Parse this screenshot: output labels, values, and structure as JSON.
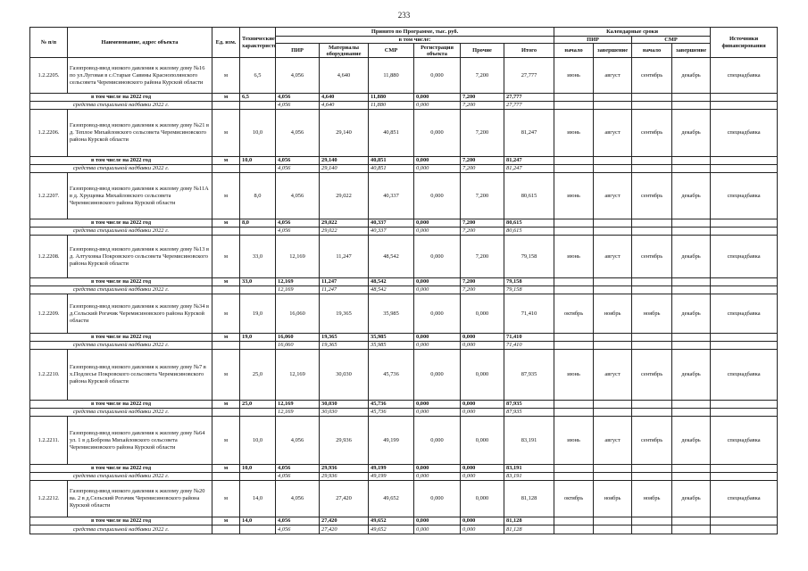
{
  "page_number": "233",
  "header": {
    "num": "№ п/п",
    "name": "Наименование, адрес объекта",
    "unit": "Ед. изм.",
    "tech": "Технические характеристики",
    "program": "Принято по Программе, тыс. руб.",
    "including": "в том числе:",
    "pir": "ПИР",
    "materials": "Материалы оборудование",
    "smr": "СМР",
    "registration": "Регистрация объекта",
    "other": "Прочие",
    "total": "Итого",
    "calendar": "Календарные сроки",
    "cal_pir": "ПИР",
    "cal_smr": "СМР",
    "start_pir": "начало",
    "end_pir": "завершение",
    "start_smr": "начало",
    "end_smr": "завершение",
    "source": "Источники финансирования"
  },
  "items": [
    {
      "code": "1.2.2205.",
      "name": "Газопровод-ввод низкого давления к жилому дому №16 по ул.Луговая в с.Старые Савины Краснополянского сельсовета Черемисиновского района  Курской области",
      "unit": "м",
      "tech": "6,5",
      "amounts": [
        "4,056",
        "4,640",
        "11,880",
        "0,000",
        "7,200",
        "27,777"
      ],
      "schedule": [
        "июнь",
        "август",
        "сентябрь",
        "декабрь"
      ],
      "source": "спецнадбавка",
      "year_row": {
        "label": "в том числе на 2022 год",
        "unit": "м",
        "tech": "6,5",
        "amounts": [
          "4,056",
          "4,640",
          "11,880",
          "0,000",
          "7,200",
          "27,777"
        ]
      },
      "special_row": {
        "label": "средства специальной надбавки 2022 г.",
        "amounts": [
          "4,056",
          "4,640",
          "11,880",
          "0,000",
          "7,200",
          "27,777"
        ]
      }
    },
    {
      "code": "1.2.2206.",
      "name": "Газопровод-ввод низкого давления к жилому дому №21 в д. Теплое Михайловского сельсовета Черемисиновского района  Курской области",
      "unit": "м",
      "tech": "10,0",
      "amounts": [
        "4,056",
        "29,140",
        "40,851",
        "0,000",
        "7,200",
        "81,247"
      ],
      "schedule": [
        "июнь",
        "август",
        "сентябрь",
        "декабрь"
      ],
      "source": "спецнадбавка",
      "year_row": {
        "label": "в том числе на 2022 год",
        "unit": "м",
        "tech": "10,0",
        "amounts": [
          "4,056",
          "29,140",
          "40,851",
          "0,000",
          "7,200",
          "81,247"
        ]
      },
      "special_row": {
        "label": "средства специальной надбавки 2022 г.",
        "amounts": [
          "4,056",
          "29,140",
          "40,851",
          "0,000",
          "7,200",
          "81,247"
        ]
      }
    },
    {
      "code": "1.2.2207.",
      "name": "Газопровод-ввод низкого давления к жилому дому №11А в д. Хрущевка  Михайловского сельсовета Черемисиновского района  Курской области",
      "unit": "м",
      "tech": "8,0",
      "amounts": [
        "4,056",
        "29,022",
        "40,337",
        "0,000",
        "7,200",
        "80,615"
      ],
      "schedule": [
        "июнь",
        "август",
        "сентябрь",
        "декабрь"
      ],
      "source": "спецнадбавка",
      "year_row": {
        "label": "в том числе на 2022 год",
        "unit": "м",
        "tech": "8,0",
        "amounts": [
          "4,056",
          "29,022",
          "40,337",
          "0,000",
          "7,200",
          "80,615"
        ]
      },
      "special_row": {
        "label": "средства специальной надбавки 2022 г.",
        "amounts": [
          "4,056",
          "29,022",
          "40,337",
          "0,000",
          "7,200",
          "80,615"
        ]
      }
    },
    {
      "code": "1.2.2208.",
      "name": "Газопровод-ввод низкого давления к жилому дому №13  в д.  Алтуховка Покровского сельсовета Черемисиновского района  Курской области",
      "unit": "м",
      "tech": "33,0",
      "amounts": [
        "12,169",
        "11,247",
        "48,542",
        "0,000",
        "7,200",
        "79,158"
      ],
      "schedule": [
        "июнь",
        "август",
        "сентябрь",
        "декабрь"
      ],
      "source": "спецнадбавка",
      "year_row": {
        "label": "в том числе на 2022 год",
        "unit": "м",
        "tech": "33,0",
        "amounts": [
          "12,169",
          "11,247",
          "48,542",
          "0,000",
          "7,200",
          "79,158"
        ]
      },
      "special_row": {
        "label": "средства специальной надбавки 2022 г.",
        "amounts": [
          "12,169",
          "11,247",
          "48,542",
          "0,000",
          "7,200",
          "79,158"
        ]
      }
    },
    {
      "code": "1.2.2209.",
      "name": "Газопровод-ввод низкого давления к жилому дому №34 в д.Сельский Рогачик Черемисиновского района Курской области",
      "unit": "м",
      "tech": "19,0",
      "amounts": [
        "16,060",
        "19,365",
        "35,985",
        "0,000",
        "0,000",
        "71,410"
      ],
      "schedule": [
        "октябрь",
        "ноябрь",
        "ноябрь",
        "декабрь"
      ],
      "source": "спецнадбавка",
      "year_row": {
        "label": "в том числе на 2022 год",
        "unit": "м",
        "tech": "19,0",
        "amounts": [
          "16,060",
          "19,365",
          "35,985",
          "0,000",
          "0,000",
          "71,410"
        ]
      },
      "special_row": {
        "label": "средства специальной надбавки 2022 г.",
        "amounts": [
          "16,060",
          "19,365",
          "35,985",
          "0,000",
          "0,000",
          "71,410"
        ]
      }
    },
    {
      "code": "1.2.2210.",
      "name": "Газопровод-ввод низкого давления к жилому дому №7 в х.Подлесье Покровского сельсовета Черемисиновского района Курской области",
      "unit": "м",
      "tech": "25,0",
      "amounts": [
        "12,169",
        "30,030",
        "45,736",
        "0,000",
        "0,000",
        "87,935"
      ],
      "schedule": [
        "июнь",
        "август",
        "сентябрь",
        "декабрь"
      ],
      "source": "спецнадбавка",
      "year_row": {
        "label": "в том числе на 2022 год",
        "unit": "м",
        "tech": "25,0",
        "amounts": [
          "12,169",
          "30,030",
          "45,736",
          "0,000",
          "0,000",
          "87,935"
        ]
      },
      "special_row": {
        "label": "средства специальной надбавки 2022 г.",
        "amounts": [
          "12,169",
          "30,030",
          "45,736",
          "0,000",
          "0,000",
          "87,935"
        ]
      }
    },
    {
      "code": "1.2.2211.",
      "name": "Газопровод-ввод низкого давления к жилому дому №64 ул. 1 в д.Боброва Михайловского сельсовета Черемисиновского района Курской области",
      "unit": "м",
      "tech": "10,0",
      "amounts": [
        "4,056",
        "29,936",
        "49,199",
        "0,000",
        "0,000",
        "83,191"
      ],
      "schedule": [
        "июнь",
        "август",
        "сентябрь",
        "декабрь"
      ],
      "source": "спецнадбавка",
      "year_row": {
        "label": "в том числе на 2022 год",
        "unit": "м",
        "tech": "10,0",
        "amounts": [
          "4,056",
          "29,936",
          "49,199",
          "0,000",
          "0,000",
          "83,191"
        ]
      },
      "special_row": {
        "label": "средства специальной надбавки 2022 г.",
        "amounts": [
          "4,056",
          "29,936",
          "49,199",
          "0,000",
          "0,000",
          "83,191"
        ]
      }
    },
    {
      "code": "1.2.2212.",
      "name": "Газопровод-ввод низкого давления к жилому дому №20 ва. 2 в д.Сельский Рогачик Черемисиновского района Курской области",
      "unit": "м",
      "tech": "14,0",
      "amounts": [
        "4,056",
        "27,420",
        "49,652",
        "0,000",
        "0,000",
        "81,128"
      ],
      "schedule": [
        "октябрь",
        "ноябрь",
        "ноябрь",
        "декабрь"
      ],
      "source": "спецнадбавка",
      "year_row": {
        "label": "в том числе на 2022 год",
        "unit": "м",
        "tech": "14,0",
        "amounts": [
          "4,056",
          "27,420",
          "49,652",
          "0,000",
          "0,000",
          "81,128"
        ]
      },
      "special_row": {
        "label": "средства специальной надбавки 2022 г.",
        "amounts": [
          "4,056",
          "27,420",
          "49,652",
          "0,000",
          "0,000",
          "81,128"
        ]
      }
    }
  ]
}
